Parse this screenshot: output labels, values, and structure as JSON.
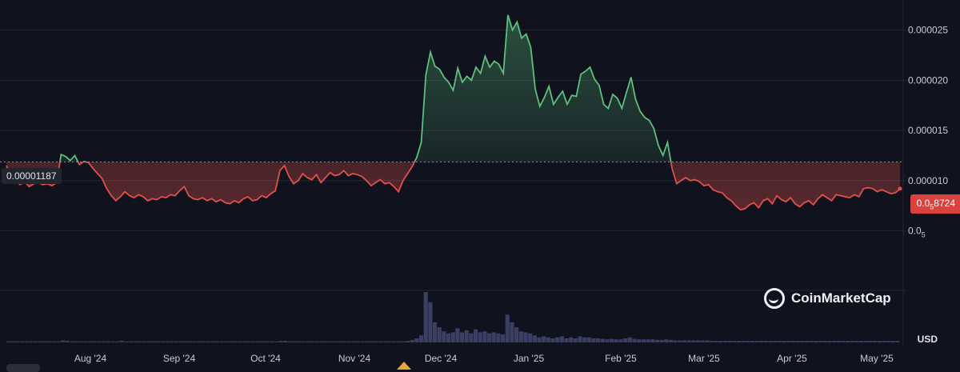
{
  "chart_data": {
    "type": "line",
    "currency": "USD",
    "baseline_label": "0.00001187",
    "baseline_value": 1.187e-05,
    "current_price": {
      "prefix": "0.0",
      "subscript": "5",
      "digits": "8724",
      "value": 8.724e-06
    },
    "y_ticks": [
      {
        "label": "0.000025",
        "value": 2.5e-05
      },
      {
        "label": "0.000020",
        "value": 2e-05
      },
      {
        "label": "0.000015",
        "value": 1.5e-05
      },
      {
        "label": "0.000010",
        "value": 1e-05
      },
      {
        "label": "0.0",
        "sub": "5",
        "value": 5e-06
      }
    ],
    "ylim": [
      5e-07,
      2.72e-05
    ],
    "x_ticks": [
      "Aug '24",
      "Sep '24",
      "Oct '24",
      "Nov '24",
      "Dec '24",
      "Jan '25",
      "Feb '25",
      "Mar '25",
      "Apr '25",
      "May '25"
    ],
    "series": [
      {
        "values": [
          1.15e-05,
          1.03e-05,
          1e-05,
          9.6e-06,
          9.9e-06,
          9.4e-06,
          9.7e-06,
          9.8e-06,
          9.6e-06,
          9.7e-06,
          9.5e-06,
          9.8e-06,
          1.26e-05,
          1.24e-05,
          1.2e-05,
          1.25e-05,
          1.16e-05,
          1.19e-05,
          1.18e-05,
          1.12e-05,
          1.07e-05,
          1.02e-05,
          9.2e-06,
          8.5e-06,
          8e-06,
          8.4e-06,
          8.9e-06,
          8.5e-06,
          8.3e-06,
          8.6e-06,
          8.4e-06,
          8e-06,
          8.2e-06,
          8.1e-06,
          8.4e-06,
          8.3e-06,
          8.6e-06,
          8.5e-06,
          9e-06,
          9.4e-06,
          8.5e-06,
          8.2e-06,
          8.1e-06,
          8.3e-06,
          8e-06,
          8.2e-06,
          7.9e-06,
          8.1e-06,
          7.8e-06,
          7.7e-06,
          8e-06,
          7.8e-06,
          8.2e-06,
          8.4e-06,
          8e-06,
          8.1e-06,
          8.5e-06,
          8.3e-06,
          8.7e-06,
          9e-06,
          1.1e-05,
          1.15e-05,
          1.04e-05,
          9.7e-06,
          1e-05,
          1.07e-05,
          1.03e-05,
          1.01e-05,
          1.06e-05,
          9.8e-06,
          1.03e-05,
          1.08e-05,
          1.05e-05,
          1.06e-05,
          1.1e-05,
          1.05e-05,
          1.07e-05,
          1.06e-05,
          1.04e-05,
          1e-05,
          9.5e-06,
          9.8e-06,
          1.01e-05,
          9.7e-06,
          9.8e-06,
          9.4e-06,
          8.9e-06,
          1e-05,
          1.07e-05,
          1.14e-05,
          1.23e-05,
          1.38e-05,
          2.05e-05,
          2.28e-05,
          2.14e-05,
          2.11e-05,
          2.03e-05,
          1.98e-05,
          1.9e-05,
          2.12e-05,
          1.98e-05,
          2.04e-05,
          2e-05,
          2.13e-05,
          2.07e-05,
          2.24e-05,
          2.13e-05,
          2.19e-05,
          2.16e-05,
          2.07e-05,
          2.65e-05,
          2.5e-05,
          2.58e-05,
          2.42e-05,
          2.46e-05,
          2.33e-05,
          1.91e-05,
          1.74e-05,
          1.83e-05,
          1.94e-05,
          1.76e-05,
          1.83e-05,
          1.89e-05,
          1.76e-05,
          1.85e-05,
          1.84e-05,
          2.06e-05,
          2.09e-05,
          2.13e-05,
          2.01e-05,
          1.95e-05,
          1.76e-05,
          1.72e-05,
          1.86e-05,
          1.82e-05,
          1.72e-05,
          1.88e-05,
          2.03e-05,
          1.81e-05,
          1.69e-05,
          1.63e-05,
          1.6e-05,
          1.52e-05,
          1.35e-05,
          1.25e-05,
          1.38e-05,
          1.12e-05,
          9.7e-06,
          1e-05,
          1.03e-05,
          1e-05,
          1.01e-05,
          9.9e-06,
          9.5e-06,
          9.6e-06,
          9.1e-06,
          8.9e-06,
          8.8e-06,
          8.3e-06,
          8e-06,
          7.5e-06,
          7.1e-06,
          7.2e-06,
          7.6e-06,
          7.8e-06,
          7.3e-06,
          8e-06,
          8.2e-06,
          7.7e-06,
          8.5e-06,
          8.1e-06,
          7.9e-06,
          8.3e-06,
          7.7e-06,
          7.4e-06,
          7.8e-06,
          8e-06,
          7.6e-06,
          8.2e-06,
          8.6e-06,
          8.3e-06,
          8e-06,
          8.6e-06,
          8.5e-06,
          8.4e-06,
          8.3e-06,
          8.6e-06,
          8.4e-06,
          9.2e-06,
          9.3e-06,
          9.2e-06,
          8.9e-06,
          9.1e-06,
          8.9e-06,
          8.7e-06,
          8.8e-06,
          9.2e-06
        ]
      }
    ],
    "volume": [
      0.02,
      0.02,
      0.02,
      0.02,
      0.02,
      0.02,
      0.02,
      0.02,
      0.02,
      0.02,
      0.02,
      0.02,
      0.04,
      0.03,
      0.02,
      0.02,
      0.02,
      0.02,
      0.02,
      0.02,
      0.02,
      0.02,
      0.02,
      0.02,
      0.02,
      0.03,
      0.02,
      0.02,
      0.02,
      0.02,
      0.02,
      0.02,
      0.02,
      0.02,
      0.02,
      0.02,
      0.02,
      0.02,
      0.02,
      0.02,
      0.02,
      0.02,
      0.02,
      0.02,
      0.02,
      0.02,
      0.02,
      0.02,
      0.02,
      0.02,
      0.02,
      0.02,
      0.02,
      0.02,
      0.02,
      0.02,
      0.02,
      0.02,
      0.02,
      0.02,
      0.03,
      0.03,
      0.02,
      0.02,
      0.02,
      0.02,
      0.02,
      0.02,
      0.02,
      0.02,
      0.02,
      0.02,
      0.02,
      0.02,
      0.02,
      0.02,
      0.02,
      0.02,
      0.02,
      0.02,
      0.02,
      0.02,
      0.02,
      0.02,
      0.02,
      0.02,
      0.02,
      0.02,
      0.03,
      0.05,
      0.08,
      0.14,
      1.0,
      0.8,
      0.4,
      0.3,
      0.22,
      0.18,
      0.2,
      0.28,
      0.2,
      0.24,
      0.18,
      0.26,
      0.2,
      0.22,
      0.18,
      0.2,
      0.18,
      0.16,
      0.55,
      0.4,
      0.3,
      0.22,
      0.2,
      0.18,
      0.14,
      0.1,
      0.12,
      0.1,
      0.08,
      0.1,
      0.12,
      0.08,
      0.1,
      0.08,
      0.12,
      0.1,
      0.1,
      0.08,
      0.08,
      0.07,
      0.06,
      0.07,
      0.06,
      0.06,
      0.08,
      0.1,
      0.07,
      0.06,
      0.06,
      0.06,
      0.06,
      0.05,
      0.05,
      0.06,
      0.05,
      0.04,
      0.04,
      0.04,
      0.04,
      0.04,
      0.04,
      0.04,
      0.04,
      0.03,
      0.03,
      0.03,
      0.03,
      0.03,
      0.03,
      0.03,
      0.03,
      0.03,
      0.03,
      0.03,
      0.03,
      0.03,
      0.03,
      0.03,
      0.03,
      0.03,
      0.03,
      0.03,
      0.03,
      0.03,
      0.03,
      0.03,
      0.03,
      0.03,
      0.03,
      0.03,
      0.03,
      0.03,
      0.03,
      0.03,
      0.03,
      0.03,
      0.03,
      0.03,
      0.03,
      0.03,
      0.03,
      0.03,
      0.03,
      0.03,
      0.03
    ],
    "colors": {
      "up": "#5fbf7d",
      "down": "#e0514c",
      "grid": "#232733",
      "baseline": "#8f939c",
      "volume": "#3a3f63"
    },
    "grid": true
  },
  "watermark": {
    "brand": "CoinMarketCap"
  }
}
